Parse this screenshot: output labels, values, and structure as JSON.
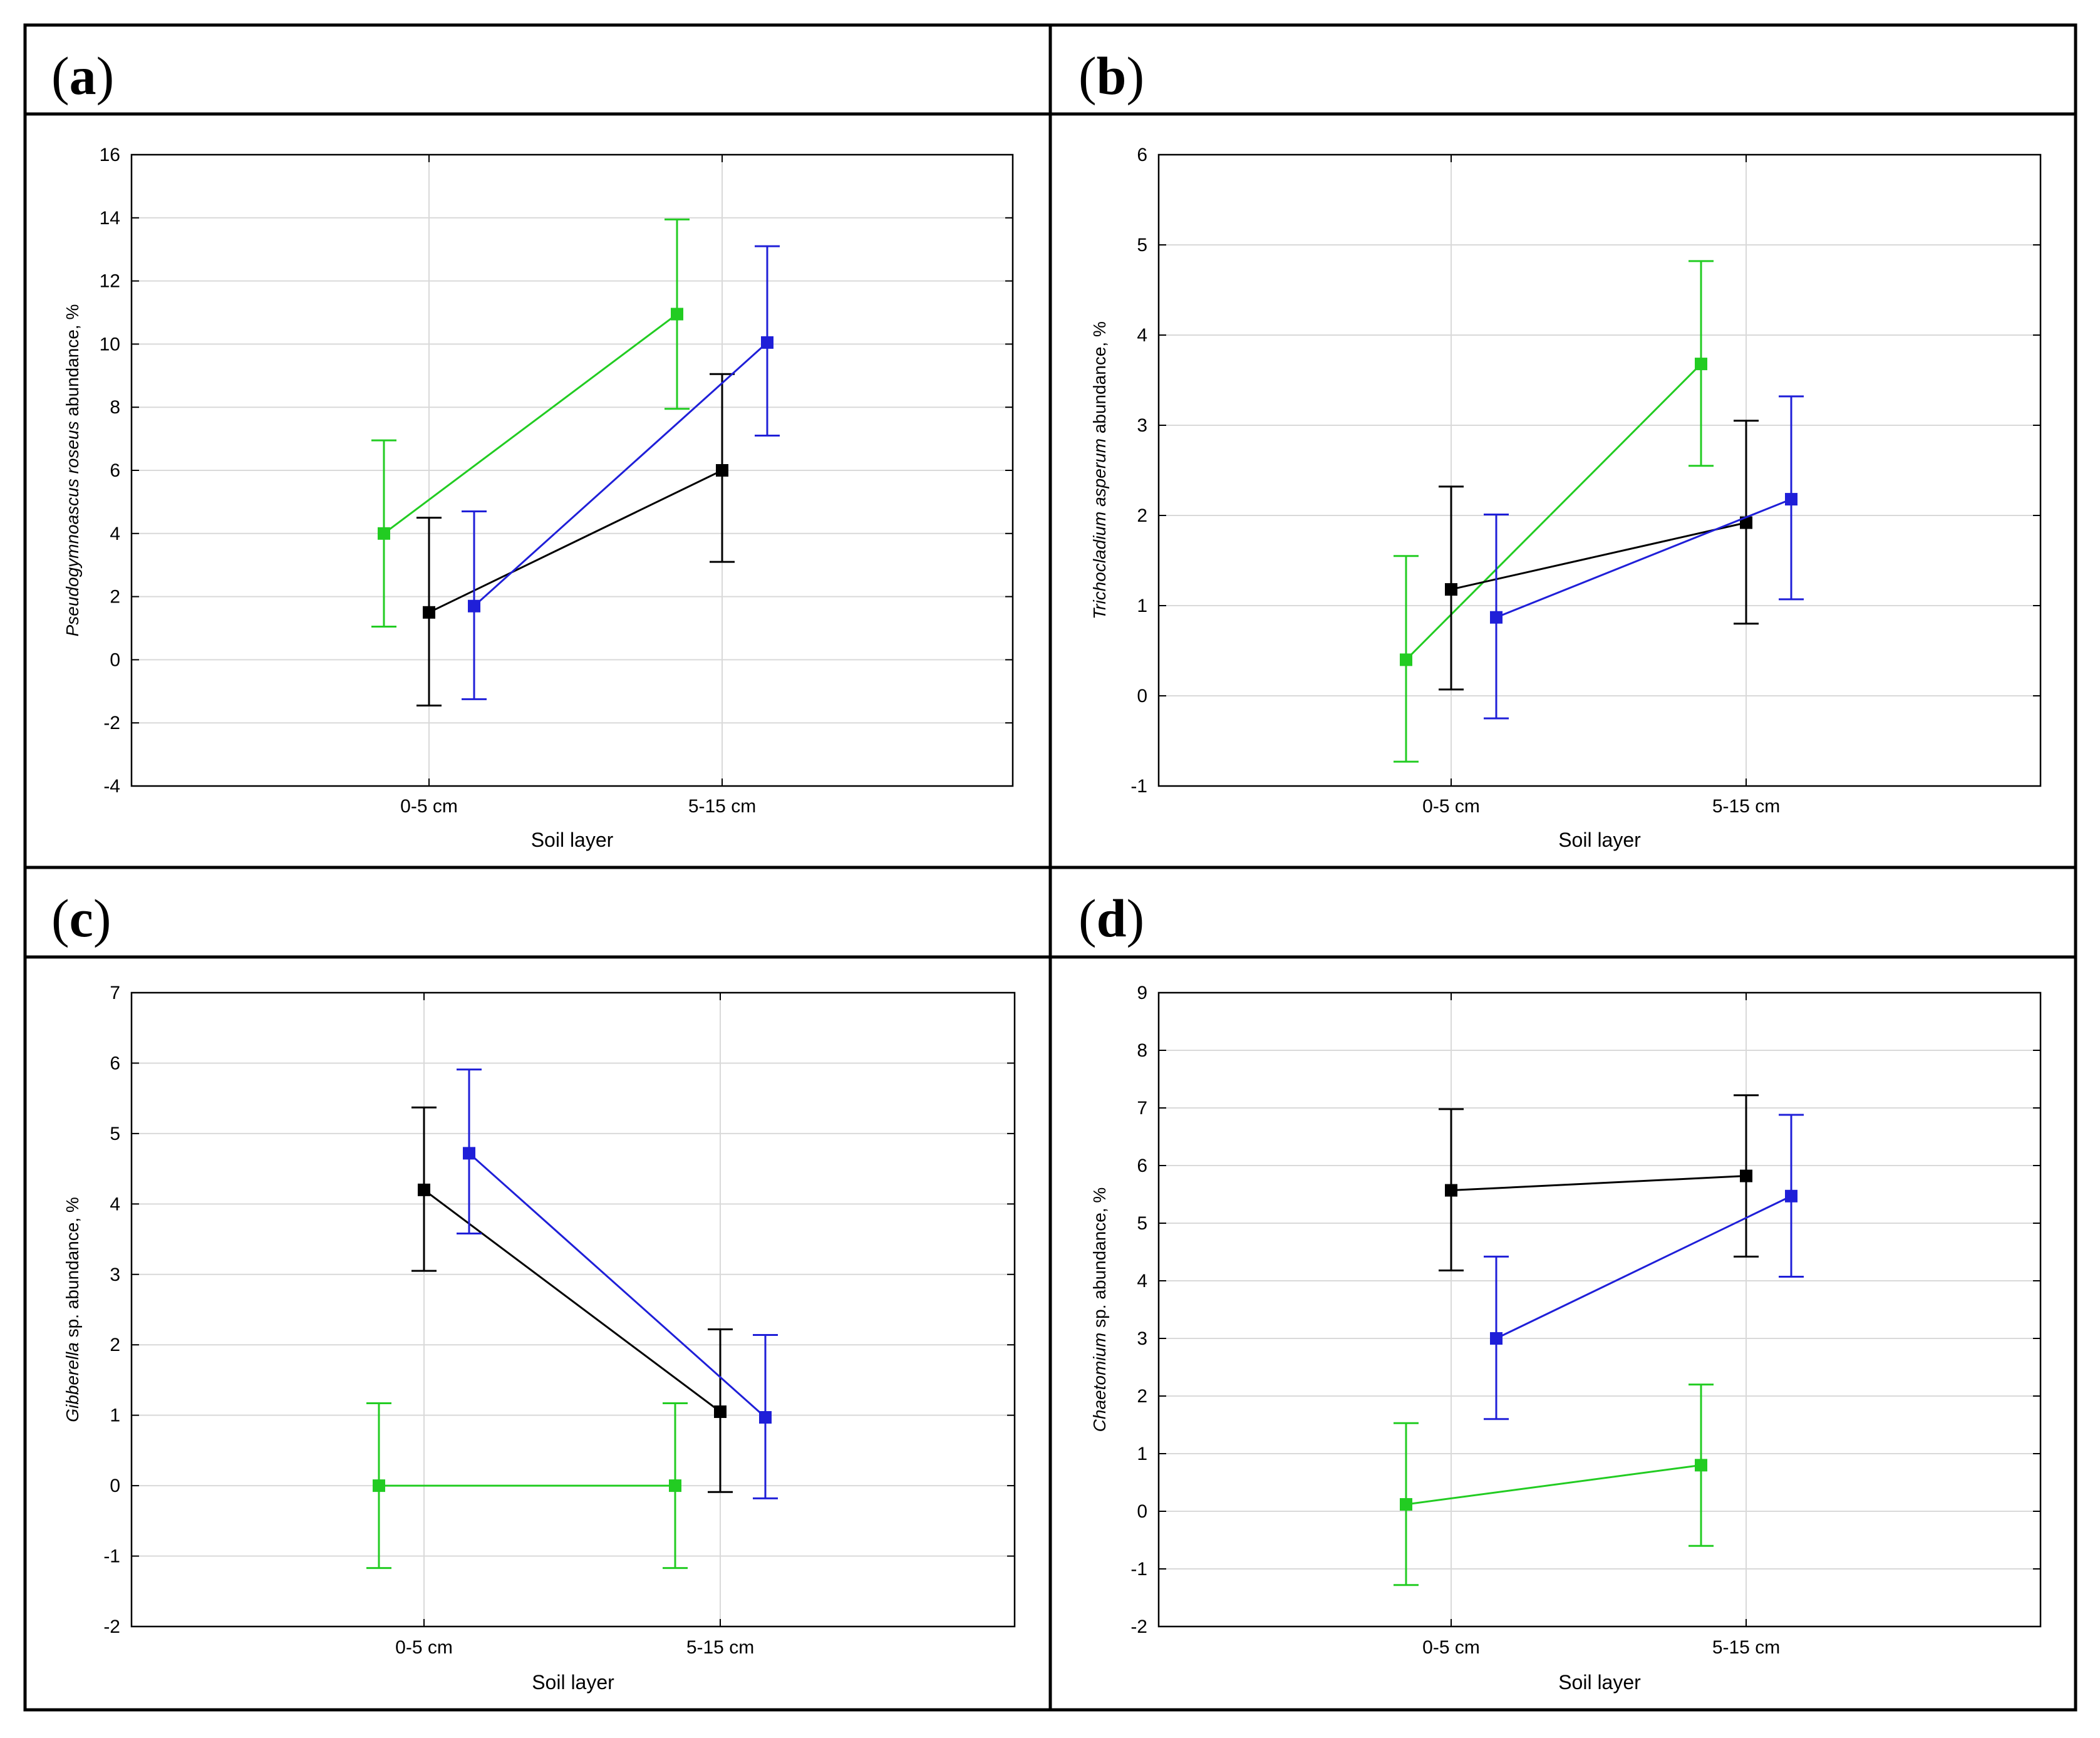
{
  "colors": {
    "green": "#22cc22",
    "black": "#000000",
    "blue": "#1f1fd8",
    "frame": "#000000",
    "grid": "#d9d9d9"
  },
  "chart_data": [
    {
      "panel": "a",
      "type": "line",
      "title": "",
      "xlabel": "Soil layer",
      "ylabel_italic": "Pseudogymnoascus roseus",
      "ylabel_rest": " abundance, %",
      "categories": [
        "0-5 cm",
        "5-15 cm"
      ],
      "ylim": [
        -4,
        16
      ],
      "yticks": [
        -4,
        -2,
        0,
        2,
        4,
        6,
        8,
        10,
        12,
        14,
        16
      ],
      "series": [
        {
          "name": "green",
          "color": "#22cc22",
          "offset": -0.15,
          "values": [
            4.0,
            10.95
          ],
          "lower": [
            1.05,
            7.95
          ],
          "upper": [
            6.95,
            13.95
          ]
        },
        {
          "name": "black",
          "color": "#000000",
          "offset": 0.0,
          "values": [
            1.5,
            6.0
          ],
          "lower": [
            -1.45,
            3.1
          ],
          "upper": [
            4.5,
            9.05
          ]
        },
        {
          "name": "blue",
          "color": "#1f1fd8",
          "offset": 0.15,
          "values": [
            1.7,
            10.05
          ],
          "lower": [
            -1.25,
            7.1
          ],
          "upper": [
            4.7,
            13.1
          ]
        }
      ]
    },
    {
      "panel": "b",
      "type": "line",
      "title": "",
      "xlabel": "Soil layer",
      "ylabel_italic": "Trichocladium asperum",
      "ylabel_rest": " abundance, %",
      "categories": [
        "0-5 cm",
        "5-15 cm"
      ],
      "ylim": [
        -1,
        6
      ],
      "yticks": [
        -1,
        0,
        1,
        2,
        3,
        4,
        5,
        6
      ],
      "series": [
        {
          "name": "green",
          "color": "#22cc22",
          "offset": -0.15,
          "values": [
            0.4,
            3.68
          ],
          "lower": [
            -0.73,
            2.55
          ],
          "upper": [
            1.55,
            4.82
          ]
        },
        {
          "name": "black",
          "color": "#000000",
          "offset": 0.0,
          "values": [
            1.18,
            1.92
          ],
          "lower": [
            0.07,
            0.8
          ],
          "upper": [
            2.32,
            3.05
          ]
        },
        {
          "name": "blue",
          "color": "#1f1fd8",
          "offset": 0.15,
          "values": [
            0.87,
            2.18
          ],
          "lower": [
            -0.25,
            1.07
          ],
          "upper": [
            2.01,
            3.32
          ]
        }
      ]
    },
    {
      "panel": "c",
      "type": "line",
      "title": "",
      "xlabel": "Soil layer",
      "ylabel_italic": "Gibberella",
      "ylabel_rest": " sp. abundance, %",
      "categories": [
        "0-5 cm",
        "5-15 cm"
      ],
      "ylim": [
        -2,
        7
      ],
      "yticks": [
        -2,
        -1,
        0,
        1,
        2,
        3,
        4,
        5,
        6,
        7
      ],
      "series": [
        {
          "name": "green",
          "color": "#22cc22",
          "offset": -0.15,
          "values": [
            0.0,
            0.0
          ],
          "lower": [
            -1.17,
            -1.17
          ],
          "upper": [
            1.17,
            1.17
          ]
        },
        {
          "name": "black",
          "color": "#000000",
          "offset": 0.0,
          "values": [
            4.2,
            1.05
          ],
          "lower": [
            3.05,
            -0.09
          ],
          "upper": [
            5.37,
            2.22
          ]
        },
        {
          "name": "blue",
          "color": "#1f1fd8",
          "offset": 0.15,
          "values": [
            4.72,
            0.97
          ],
          "lower": [
            3.58,
            -0.18
          ],
          "upper": [
            5.91,
            2.14
          ]
        }
      ]
    },
    {
      "panel": "d",
      "type": "line",
      "title": "",
      "xlabel": "Soil layer",
      "ylabel_italic": "Chaetomium",
      "ylabel_rest": " sp. abundance, %",
      "categories": [
        "0-5 cm",
        "5-15 cm"
      ],
      "ylim": [
        -2,
        9
      ],
      "yticks": [
        -2,
        -1,
        0,
        1,
        2,
        3,
        4,
        5,
        6,
        7,
        8,
        9
      ],
      "series": [
        {
          "name": "green",
          "color": "#22cc22",
          "offset": -0.15,
          "values": [
            0.12,
            0.8
          ],
          "lower": [
            -1.28,
            -0.6
          ],
          "upper": [
            1.53,
            2.2
          ]
        },
        {
          "name": "black",
          "color": "#000000",
          "offset": 0.0,
          "values": [
            5.57,
            5.82
          ],
          "lower": [
            4.18,
            4.42
          ],
          "upper": [
            6.98,
            7.22
          ]
        },
        {
          "name": "blue",
          "color": "#1f1fd8",
          "offset": 0.15,
          "values": [
            3.0,
            5.47
          ],
          "lower": [
            1.6,
            4.07
          ],
          "upper": [
            4.42,
            6.88
          ]
        }
      ]
    }
  ]
}
